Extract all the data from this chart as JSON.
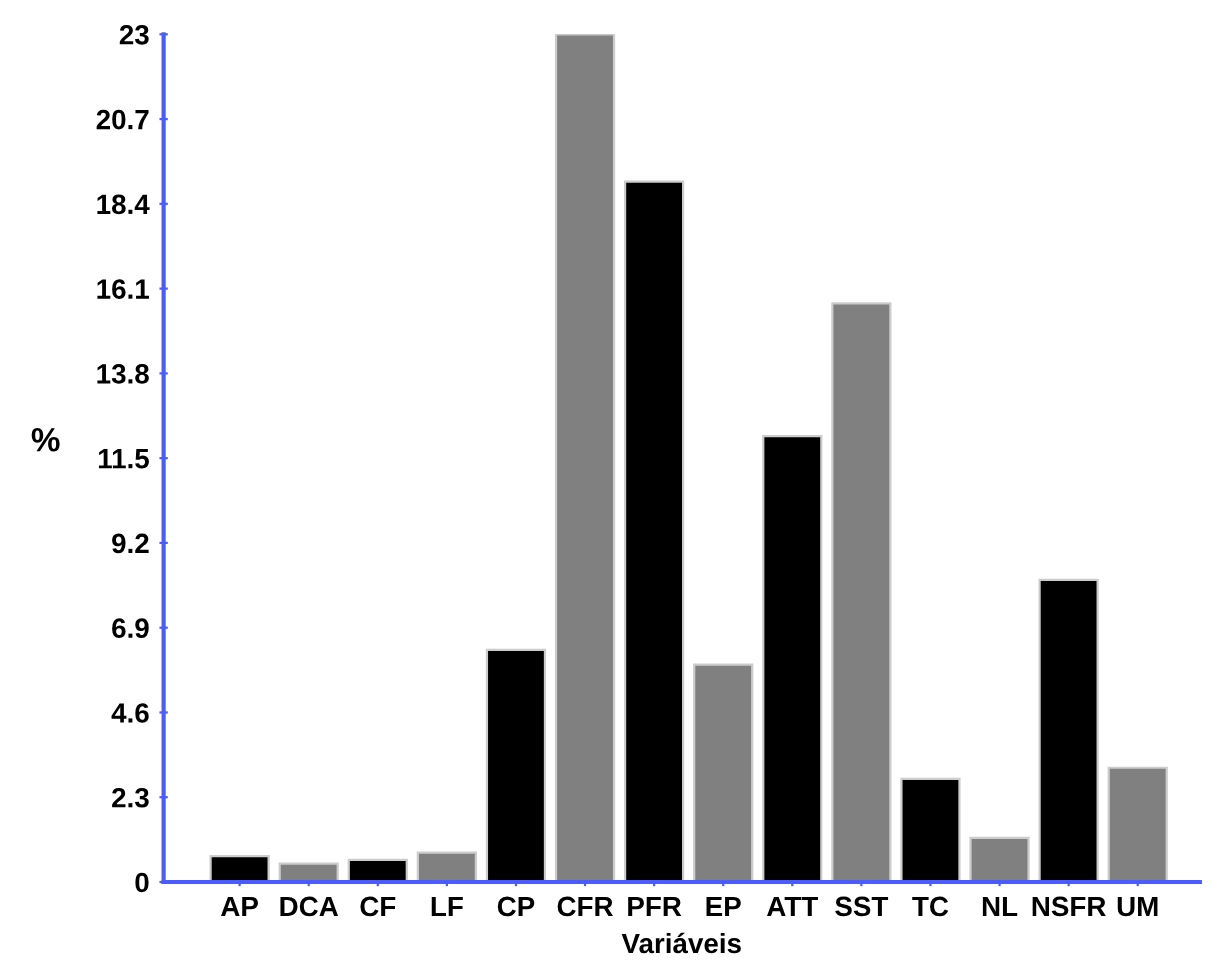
{
  "chart_data": {
    "type": "bar",
    "xlabel": "Variáveis",
    "ylabel": "%",
    "categories": [
      "AP",
      "DCA",
      "CF",
      "LF",
      "CP",
      "CFR",
      "PFR",
      "EP",
      "ATT",
      "SST",
      "TC",
      "NL",
      "NSFR",
      "UM"
    ],
    "values": [
      0.7,
      0.5,
      0.6,
      0.8,
      6.3,
      23.0,
      19.0,
      5.9,
      12.1,
      15.7,
      2.8,
      1.2,
      8.2,
      3.1
    ],
    "colors": [
      "#000000",
      "#808080",
      "#000000",
      "#808080",
      "#000000",
      "#808080",
      "#000000",
      "#808080",
      "#000000",
      "#808080",
      "#000000",
      "#808080",
      "#000000",
      "#808080"
    ],
    "ylim": [
      0,
      23
    ],
    "yticks": [
      0,
      2.3,
      4.6,
      6.9,
      9.2,
      11.5,
      13.8,
      16.1,
      18.4,
      20.7,
      23
    ],
    "grid": false
  }
}
